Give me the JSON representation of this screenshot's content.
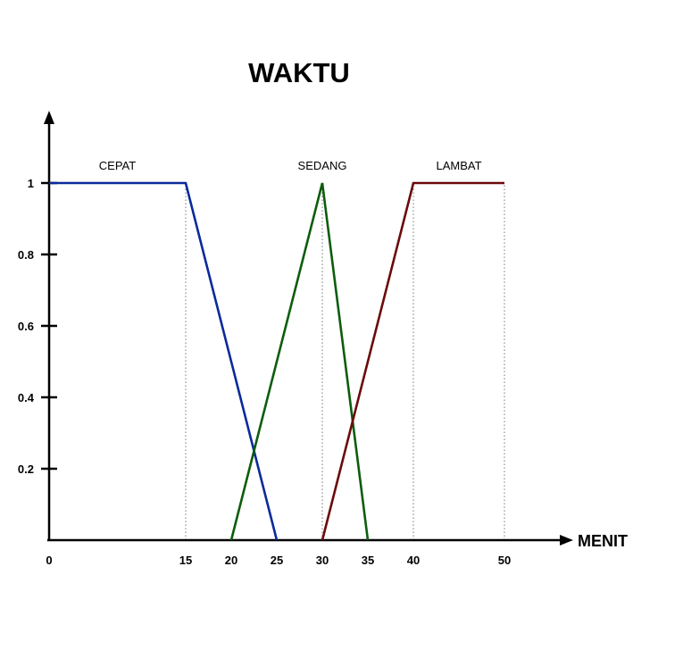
{
  "chart_data": {
    "type": "line",
    "title": "WAKTU",
    "xlabel": "MENIT",
    "ylabel": "",
    "x_ticks": [
      "0",
      "15",
      "20",
      "25",
      "30",
      "35",
      "40",
      "50"
    ],
    "y_ticks": [
      "0.2",
      "0.4",
      "0.6",
      "0.8",
      "1"
    ],
    "series": [
      {
        "name": "CEPAT",
        "color": "#0a2a9a",
        "points": [
          [
            0,
            1
          ],
          [
            15,
            1
          ],
          [
            25,
            0
          ]
        ]
      },
      {
        "name": "SEDANG",
        "color": "#0d5c0d",
        "points": [
          [
            20,
            0
          ],
          [
            30,
            1
          ],
          [
            35,
            0
          ]
        ]
      },
      {
        "name": "LAMBAT",
        "color": "#6b0a0a",
        "points": [
          [
            30,
            0
          ],
          [
            40,
            1
          ],
          [
            50,
            1
          ]
        ]
      }
    ],
    "guides": [
      15,
      30,
      40,
      50
    ],
    "grid": false
  }
}
